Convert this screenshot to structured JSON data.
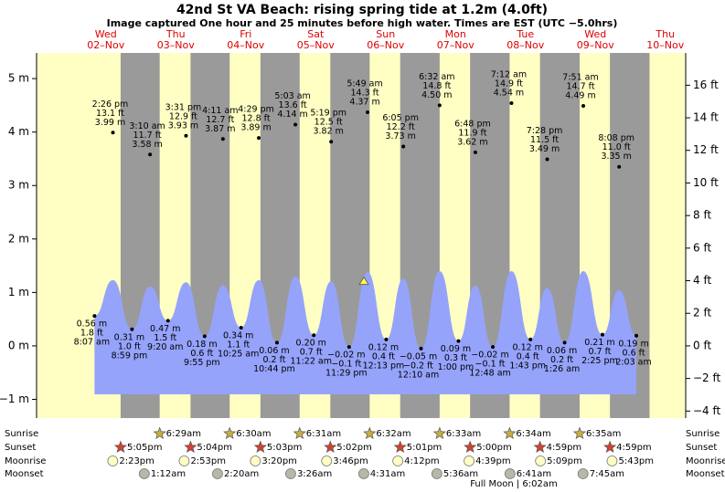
{
  "chart_data": {
    "type": "tide",
    "title": "42nd St VA Beach: rising  spring tide at 1.2m (4.0ft)",
    "subtitle": "Image captured One hour and 25 minutes before high water. Times are EST (UTC −5.0hrs)",
    "ylim": [
      -1.35,
      5.48
    ],
    "yticks": [
      {
        "value": -1,
        "label": "−1 m"
      },
      {
        "value": 0,
        "label": "0 m"
      },
      {
        "value": 1,
        "label": "1 m"
      },
      {
        "value": 2,
        "label": "2 m"
      },
      {
        "value": 3,
        "label": "3 m"
      },
      {
        "value": 4,
        "label": "4 m"
      },
      {
        "value": 5,
        "label": "5 m"
      }
    ],
    "y2lim": [
      -4.43,
      17.98
    ],
    "y2ticks": [
      {
        "value": -4,
        "label": "−4 ft"
      },
      {
        "value": -2,
        "label": "−2 ft"
      },
      {
        "value": 0,
        "label": "0 ft"
      },
      {
        "value": 2,
        "label": "2 ft"
      },
      {
        "value": 4,
        "label": "4 ft"
      },
      {
        "value": 6,
        "label": "6 ft"
      },
      {
        "value": 8,
        "label": "8 ft"
      },
      {
        "value": 10,
        "label": "10 ft"
      },
      {
        "value": 12,
        "label": "12 ft"
      },
      {
        "value": 14,
        "label": "14 ft"
      },
      {
        "value": 16,
        "label": "16 ft"
      }
    ],
    "now_level": 1.2,
    "row_labels": {
      "sunrise": "Sunrise",
      "sunset": "Sunset",
      "moonrise": "Moonrise",
      "moonset": "Moonset"
    },
    "moon_note": "Full Moon | 6:02am",
    "days": [
      {
        "dow": "Wed",
        "date": "02–Nov",
        "sunset": "5:05pm",
        "moonrise": "2:23pm",
        "tides": [
          {
            "time": "8:07 am",
            "m": 0.56,
            "m_label": "0.56 m",
            "ft_label": "1.8 ft"
          },
          {
            "time": "2:26 pm",
            "m": 3.99,
            "m_label": "3.99 m",
            "ft_label": "13.1 ft",
            "level": 1.23
          },
          {
            "time": "8:59 pm",
            "m": 0.31,
            "m_label": "0.31 m",
            "ft_label": "1.0 ft"
          }
        ]
      },
      {
        "dow": "Thu",
        "date": "03–Nov",
        "sunrise": "6:29am",
        "sunset": "5:04pm",
        "moonrise": "2:53pm",
        "moonset": "1:12am",
        "tides": [
          {
            "time": "3:10 am",
            "m": 3.58,
            "m_label": "3.58 m",
            "ft_label": "11.7 ft",
            "level": 1.11
          },
          {
            "time": "9:20 am",
            "m": 0.47,
            "m_label": "0.47 m",
            "ft_label": "1.5 ft"
          },
          {
            "time": "3:31 pm",
            "m": 3.93,
            "m_label": "3.93 m",
            "ft_label": "12.9 ft",
            "level": 1.19
          },
          {
            "time": "9:55 pm",
            "m": 0.18,
            "m_label": "0.18 m",
            "ft_label": "0.6 ft"
          }
        ]
      },
      {
        "dow": "Fri",
        "date": "04–Nov",
        "sunrise": "6:30am",
        "sunset": "5:03pm",
        "moonrise": "3:20pm",
        "moonset": "2:20am",
        "tides": [
          {
            "time": "4:11 am",
            "m": 3.87,
            "m_label": "3.87 m",
            "ft_label": "12.7 ft",
            "level": 1.13
          },
          {
            "time": "10:25 am",
            "m": 0.34,
            "m_label": "0.34 m",
            "ft_label": "1.1 ft"
          },
          {
            "time": "4:29 pm",
            "m": 3.89,
            "m_label": "3.89 m",
            "ft_label": "12.8 ft",
            "level": 1.23
          },
          {
            "time": "10:44 pm",
            "m": 0.06,
            "m_label": "0.06 m",
            "ft_label": "0.2 ft"
          }
        ]
      },
      {
        "dow": "Sat",
        "date": "05–Nov",
        "sunrise": "6:31am",
        "sunset": "5:02pm",
        "moonrise": "3:46pm",
        "moonset": "3:26am",
        "tides": [
          {
            "time": "5:03 am",
            "m": 4.14,
            "m_label": "4.14 m",
            "ft_label": "13.6 ft",
            "level": 1.3
          },
          {
            "time": "11:22 am",
            "m": 0.2,
            "m_label": "0.20 m",
            "ft_label": "0.7 ft"
          },
          {
            "time": "5:19 pm",
            "m": 3.82,
            "m_label": "3.82 m",
            "ft_label": "12.5 ft",
            "level": 1.21
          },
          {
            "time": "11:29 pm",
            "m": -0.02,
            "m_label": "−0.02 m",
            "ft_label": "−0.1 ft"
          }
        ]
      },
      {
        "dow": "Sun",
        "date": "06–Nov",
        "sunrise": "6:32am",
        "sunset": "5:01pm",
        "moonrise": "4:12pm",
        "moonset": "4:31am",
        "tides": [
          {
            "time": "5:49 am",
            "m": 4.37,
            "m_label": "4.37 m",
            "ft_label": "14.3 ft",
            "level": 1.38
          },
          {
            "time": "12:13 pm",
            "m": 0.12,
            "m_label": "0.12 m",
            "ft_label": "0.4 ft"
          },
          {
            "time": "6:05 pm",
            "m": 3.73,
            "m_label": "3.73 m",
            "ft_label": "12.2 ft",
            "level": 1.26
          }
        ]
      },
      {
        "dow": "Mon",
        "date": "07–Nov",
        "sunrise": "6:33am",
        "sunset": "5:00pm",
        "moonrise": "4:39pm",
        "moonset": "5:36am",
        "tides": [
          {
            "time": "12:10 am",
            "m": -0.05,
            "m_label": "−0.05 m",
            "ft_label": "−0.2 ft"
          },
          {
            "time": "6:32 am",
            "m": 4.5,
            "m_label": "4.50 m",
            "ft_label": "14.8 ft",
            "level": 1.4
          },
          {
            "time": "1:00 pm",
            "m": 0.09,
            "m_label": "0.09 m",
            "ft_label": "0.3 ft"
          },
          {
            "time": "6:48 pm",
            "m": 3.62,
            "m_label": "3.62 m",
            "ft_label": "11.9 ft",
            "level": 1.13
          }
        ]
      },
      {
        "dow": "Tue",
        "date": "08–Nov",
        "sunrise": "6:34am",
        "sunset": "4:59pm",
        "moonrise": "5:09pm",
        "moonset": "6:41am",
        "tides": [
          {
            "time": "12:48 am",
            "m": -0.02,
            "m_label": "−0.02 m",
            "ft_label": "−0.1 ft"
          },
          {
            "time": "7:12 am",
            "m": 4.54,
            "m_label": "4.54 m",
            "ft_label": "14.9 ft",
            "level": 1.4
          },
          {
            "time": "1:43 pm",
            "m": 0.12,
            "m_label": "0.12 m",
            "ft_label": "0.4 ft"
          },
          {
            "time": "7:28 pm",
            "m": 3.49,
            "m_label": "3.49 m",
            "ft_label": "11.5 ft",
            "level": 1.08
          }
        ]
      },
      {
        "dow": "Wed",
        "date": "09–Nov",
        "sunrise": "6:35am",
        "sunset": "4:59pm",
        "moonrise": "5:43pm",
        "moonset": "7:45am",
        "tides": [
          {
            "time": "1:26 am",
            "m": 0.06,
            "m_label": "0.06 m",
            "ft_label": "0.2 ft"
          },
          {
            "time": "7:51 am",
            "m": 4.49,
            "m_label": "4.49 m",
            "ft_label": "14.7 ft",
            "level": 1.4
          },
          {
            "time": "2:25 pm",
            "m": 0.21,
            "m_label": "0.21 m",
            "ft_label": "0.7 ft"
          },
          {
            "time": "8:08 pm",
            "m": 3.35,
            "m_label": "3.35 m",
            "ft_label": "11.0 ft",
            "level": 1.04
          }
        ]
      },
      {
        "dow": "Thu",
        "date": "10–Nov",
        "tides": [
          {
            "time": "2:03 am",
            "m": 0.19,
            "m_label": "0.19 m",
            "ft_label": "0.6 ft"
          }
        ]
      }
    ]
  }
}
